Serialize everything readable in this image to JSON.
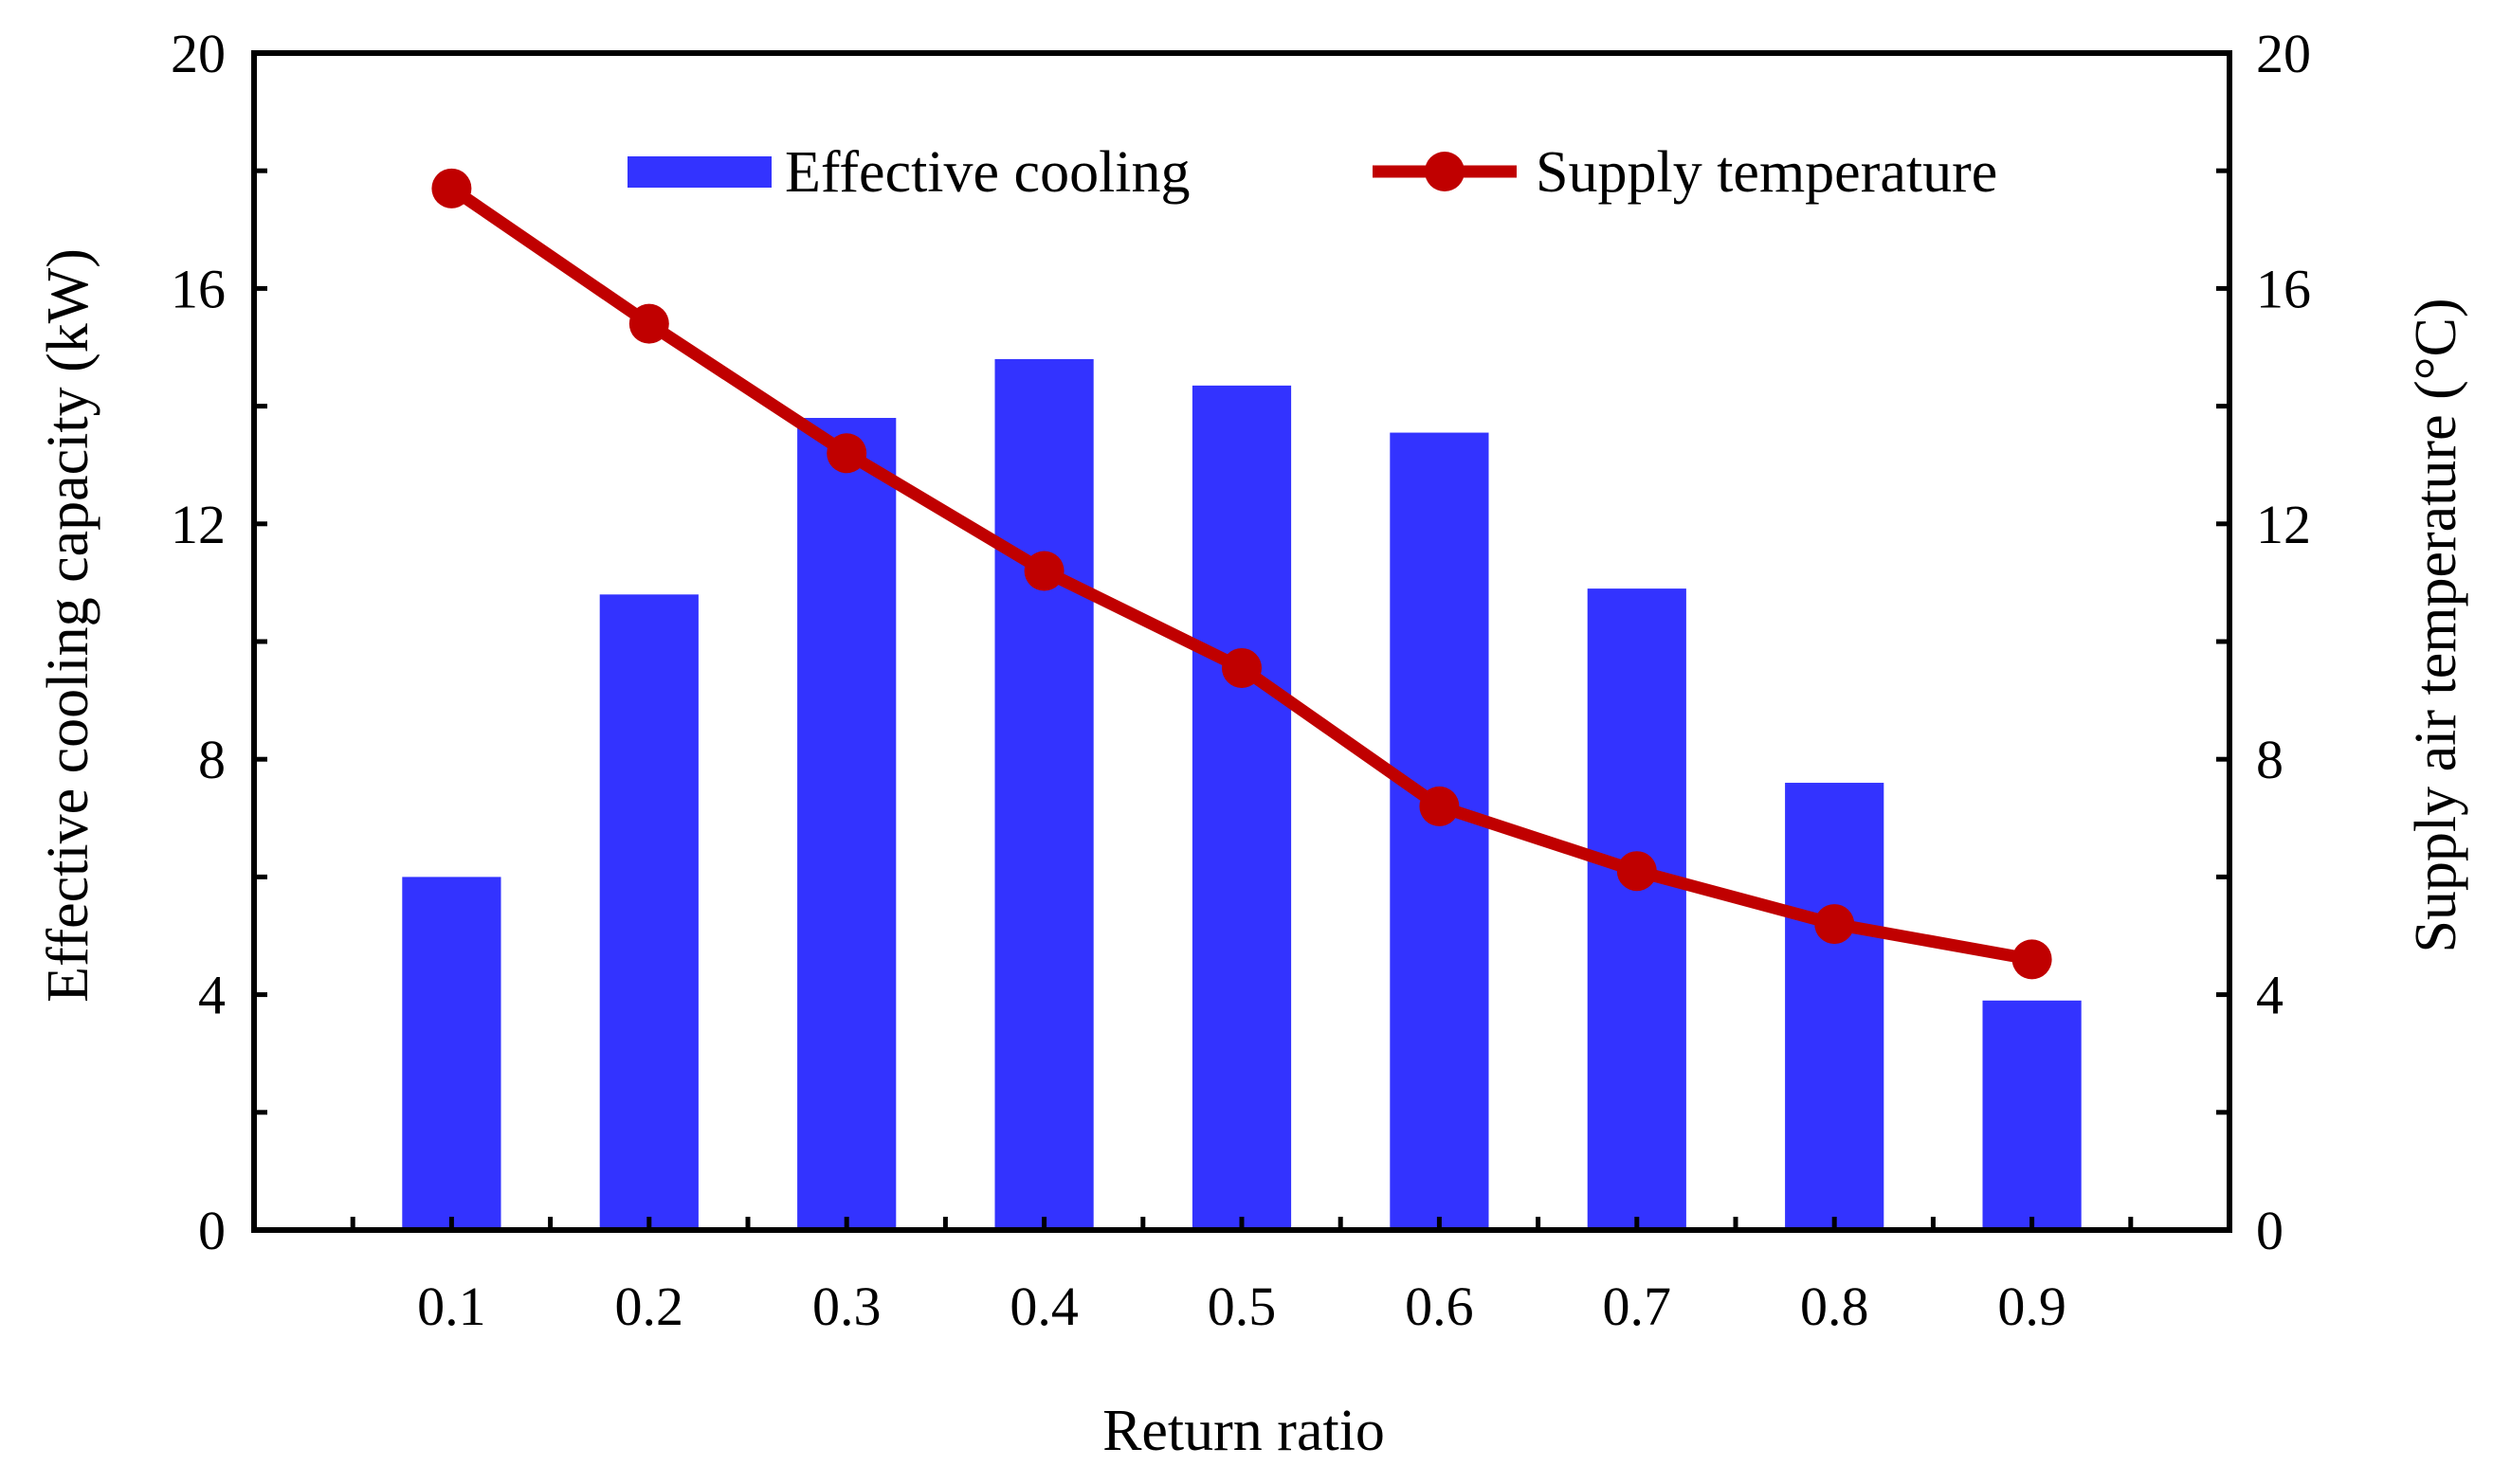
{
  "chart_data": {
    "type": "bar+line",
    "xlabel": "Return ratio",
    "ylabel_left": "Effective cooling capacity (kW)",
    "ylabel_right": "Supply air temperature (°C)",
    "categories": [
      "0.1",
      "0.2",
      "0.3",
      "0.4",
      "0.5",
      "0.6",
      "0.7",
      "0.8",
      "0.9"
    ],
    "ylim_left": [
      0,
      20
    ],
    "ylim_right": [
      0,
      20
    ],
    "yticks_left": [
      "0",
      "4",
      "8",
      "12",
      "16",
      "20"
    ],
    "yticks_right": [
      "0",
      "4",
      "8",
      "12",
      "16",
      "20"
    ],
    "grid": false,
    "legend_position": "top",
    "series": [
      {
        "name": "Effective cooling",
        "type": "bar",
        "axis": "left",
        "color": "#3333ff",
        "values": [
          6.0,
          10.8,
          13.8,
          14.8,
          14.35,
          13.55,
          10.9,
          7.6,
          3.9
        ]
      },
      {
        "name": "Supply temperature",
        "type": "line",
        "axis": "right",
        "color": "#c00000",
        "values": [
          17.7,
          15.4,
          13.2,
          11.2,
          9.55,
          7.2,
          6.1,
          5.2,
          4.6
        ]
      }
    ]
  }
}
